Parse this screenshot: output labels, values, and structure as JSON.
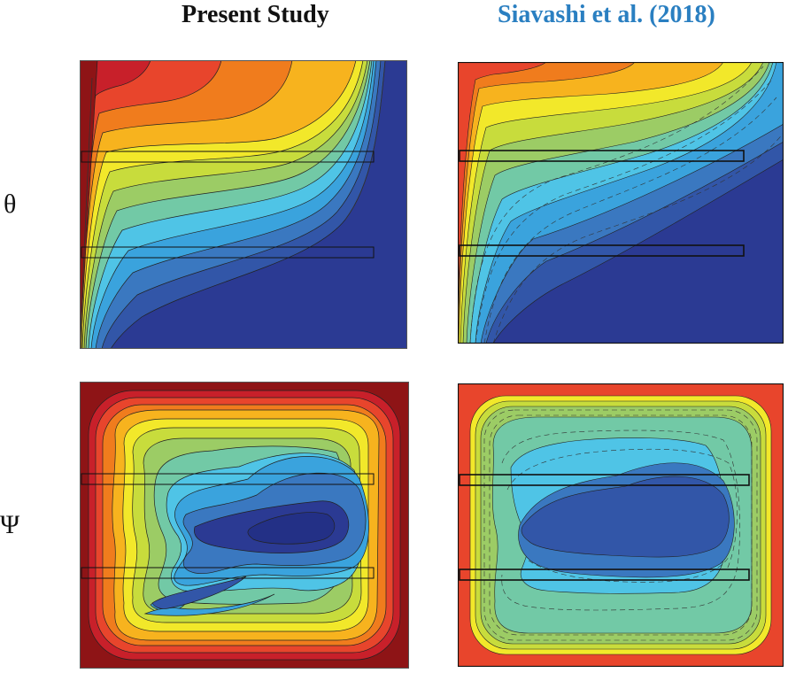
{
  "figure": {
    "columns": [
      {
        "title": "Present Study",
        "color": "#111111"
      },
      {
        "title": "Siavashi et al. (2018)",
        "color": "#2a7fc1"
      }
    ],
    "rows": [
      {
        "label": "θ"
      },
      {
        "label": "Ψ"
      }
    ]
  },
  "colormap": [
    "#2b3a93",
    "#3256a8",
    "#3a78c0",
    "#3aa3dd",
    "#4fc4e6",
    "#72c9a6",
    "#9ccc65",
    "#c8dc3c",
    "#f2e82a",
    "#f7b31e",
    "#f07c1d",
    "#e8452c",
    "#c8202a",
    "#8e1416"
  ]
}
